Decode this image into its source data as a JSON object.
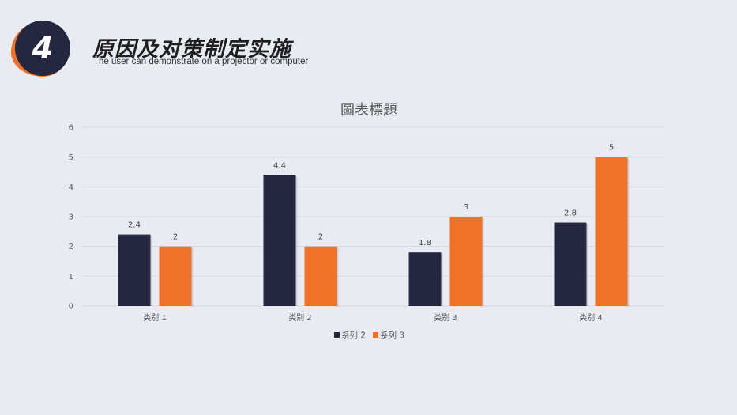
{
  "header": {
    "number": "4",
    "title": "原因及对策制定实施",
    "subtitle": "The user can demonstrate on a projector or computer"
  },
  "colors": {
    "series_a": "#252640",
    "series_b": "#f07228",
    "grid": "#d6d8de"
  },
  "chart_data": {
    "type": "bar",
    "title": "圖表標題",
    "xlabel": "",
    "ylabel": "",
    "categories": [
      "类别 1",
      "类别 2",
      "类别 3",
      "类别 4"
    ],
    "series": [
      {
        "name": "系列 2",
        "values": [
          2.4,
          4.4,
          1.8,
          2.8
        ]
      },
      {
        "name": "系列 3",
        "values": [
          2,
          2,
          3,
          5
        ]
      }
    ],
    "ylim": [
      0,
      6
    ],
    "yticks": [
      0,
      1,
      2,
      3,
      4,
      5,
      6
    ],
    "grid": true,
    "legend": "bottom"
  }
}
